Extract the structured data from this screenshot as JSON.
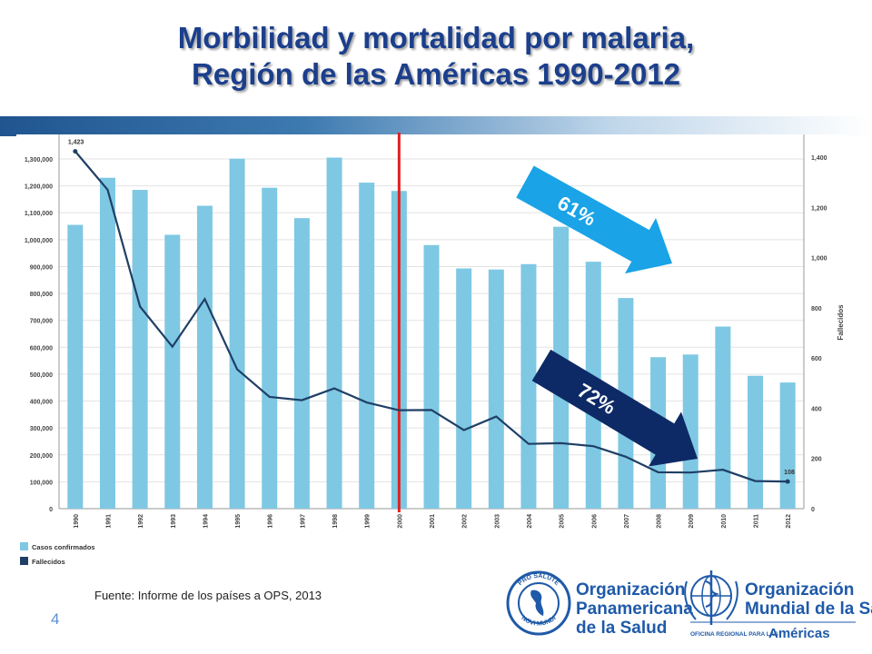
{
  "title": {
    "line1": "Morbilidad y mortalidad por malaria,",
    "line2": "Región de las Américas 1990-2012"
  },
  "chart_data": {
    "type": "bar",
    "categories": [
      "1990",
      "1991",
      "1992",
      "1993",
      "1994",
      "1995",
      "1996",
      "1997",
      "1998",
      "1999",
      "2000",
      "2001",
      "2002",
      "2003",
      "2004",
      "2005",
      "2006",
      "2007",
      "2008",
      "2009",
      "2010",
      "2011",
      "2012"
    ],
    "series": [
      {
        "name": "Casos confirmados",
        "type": "bar",
        "axis": "left",
        "color": "#7ec8e3",
        "values": [
          1055000,
          1230000,
          1185000,
          1018000,
          1126000,
          1301000,
          1193000,
          1080000,
          1305000,
          1212000,
          1181000,
          980000,
          893000,
          889000,
          909000,
          1048000,
          918000,
          783000,
          563000,
          573000,
          677000,
          494000,
          469000
        ]
      },
      {
        "name": "Fallecidos",
        "type": "line",
        "axis": "right",
        "color": "#1f3f66",
        "values": [
          1423,
          1270,
          805,
          645,
          835,
          555,
          445,
          432,
          479,
          423,
          392,
          393,
          313,
          367,
          258,
          261,
          249,
          207,
          145,
          144,
          155,
          110,
          108
        ]
      }
    ],
    "yleft": {
      "ylim": [
        0,
        1300000
      ],
      "ticks": [
        "0",
        "100,000",
        "200,000",
        "300,000",
        "400,000",
        "500,000",
        "600,000",
        "700,000",
        "800,000",
        "900,000",
        "1,000,000",
        "1,100,000",
        "1,200,000",
        "1,300,000"
      ]
    },
    "yright": {
      "ylim": [
        0,
        1400
      ],
      "ticks": [
        "0",
        "200",
        "400",
        "600",
        "800",
        "1,000",
        "1,200",
        "1,400"
      ],
      "label": "Fallecidos"
    },
    "annotations": [
      {
        "text": "1,423",
        "x": "1990",
        "series": "Fallecidos"
      },
      {
        "text": "108",
        "x": "2012",
        "series": "Fallecidos"
      },
      {
        "text": "61%",
        "color": "#1aa3e6"
      },
      {
        "text": "72%",
        "color": "#0d2a66"
      }
    ],
    "marker_line": {
      "x": "2000",
      "color": "#e02020"
    },
    "legend": [
      {
        "label": "Casos confirmados",
        "color": "#7ec8e3"
      },
      {
        "label": "Fallecidos",
        "color": "#1f3f66"
      }
    ],
    "grid": true,
    "legend_position": "bottom-left"
  },
  "source": "Fuente: Informe de los países a OPS, 2013",
  "page_number": "4",
  "logos": {
    "ops": {
      "line1": "Organización",
      "line2": "Panamericana",
      "line3": "de la Salud",
      "seal_top": "PRO SALUTE",
      "seal_bottom": "NOVI MUNDI"
    },
    "oms": {
      "line1": "Organización",
      "line2": "Mundial de la Salud",
      "sub_small": "OFICINA REGIONAL PARA LAS",
      "sub_big": "Américas"
    }
  }
}
